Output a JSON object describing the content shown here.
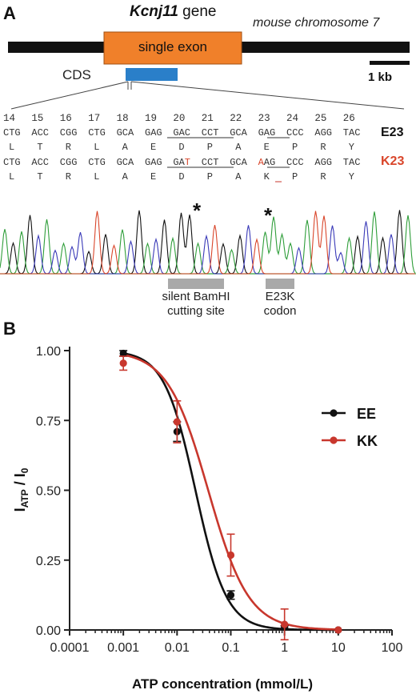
{
  "panel_a": {
    "letter": "A",
    "gene_name": "Kcnj11",
    "gene_word": " gene",
    "chromosome": "mouse chromosome 7",
    "exon_label": "single exon",
    "cds_label": "CDS",
    "scale_label": "1 kb",
    "colors": {
      "exon": "#f0802a",
      "cds": "#2a7fc9",
      "chromosome": "#111111",
      "mutant": "#d9462b"
    },
    "codon_numbers": [
      "14",
      "15",
      "16",
      "17",
      "18",
      "19",
      "20",
      "21",
      "22",
      "23",
      "24",
      "25",
      "26"
    ],
    "wt_codons": [
      "CTG",
      "ACC",
      "CGG",
      "CTG",
      "GCA",
      "GAG",
      "GAC",
      "CCT",
      "GCA",
      "GAG",
      "CCC",
      "AGG",
      "TAC"
    ],
    "wt_aa": [
      "L",
      "T",
      "R",
      "L",
      "A",
      "E",
      "D",
      "P",
      "A",
      "E",
      "P",
      "R",
      "Y"
    ],
    "mut_codons": [
      [
        "CTG"
      ],
      [
        "ACC"
      ],
      [
        "CGG"
      ],
      [
        "CTG"
      ],
      [
        "GCA"
      ],
      [
        "GAG"
      ],
      [
        "GA",
        "T"
      ],
      [
        "CCT"
      ],
      [
        "GCA"
      ],
      [
        "A",
        "AG"
      ],
      [
        "CCC"
      ],
      [
        "AGG"
      ],
      [
        "TAC"
      ]
    ],
    "mut_aa": [
      "L",
      "T",
      "R",
      "L",
      "A",
      "E",
      "D",
      "P",
      "A",
      "K",
      "P",
      "R",
      "Y"
    ],
    "wt_label": "E23",
    "mut_label": "K23",
    "asterisk": "*",
    "bamhi_label_1": "silent BamHI",
    "bamhi_label_2": "cutting site",
    "e23k_label_1": "E23K",
    "e23k_label_2": "codon"
  },
  "panel_b": {
    "letter": "B",
    "chart_data": {
      "type": "scatter",
      "xlabel": "ATP concentration (mmol/L)",
      "ylabel_main": "I",
      "ylabel_sub": "ATP",
      "ylabel_rest": " / I",
      "ylabel_sub2": "0",
      "x_scale": "log",
      "xlim": [
        0.0001,
        100
      ],
      "ylim": [
        0,
        1
      ],
      "x_ticks": [
        "0.0001",
        "0.001",
        "0.01",
        "0.1",
        "1",
        "10",
        "100"
      ],
      "y_ticks": [
        "0.00",
        "0.25",
        "0.50",
        "0.75",
        "1.00"
      ],
      "legend_position": "right",
      "series": [
        {
          "name": "EE",
          "color": "#111111",
          "x": [
            0.001,
            0.01,
            0.1,
            1,
            10
          ],
          "y": [
            0.99,
            0.71,
            0.125,
            0.01,
            0.0
          ],
          "err": [
            0.01,
            0.035,
            0.015,
            0.005,
            0.0
          ],
          "ic50": 0.022,
          "hill": 1.5
        },
        {
          "name": "KK",
          "color": "#c8372d",
          "x": [
            0.001,
            0.01,
            0.1,
            1,
            10
          ],
          "y": [
            0.955,
            0.745,
            0.268,
            0.02,
            0.0
          ],
          "err": [
            0.025,
            0.075,
            0.075,
            0.055,
            0.0
          ],
          "ic50": 0.038,
          "hill": 1.15
        }
      ]
    }
  }
}
